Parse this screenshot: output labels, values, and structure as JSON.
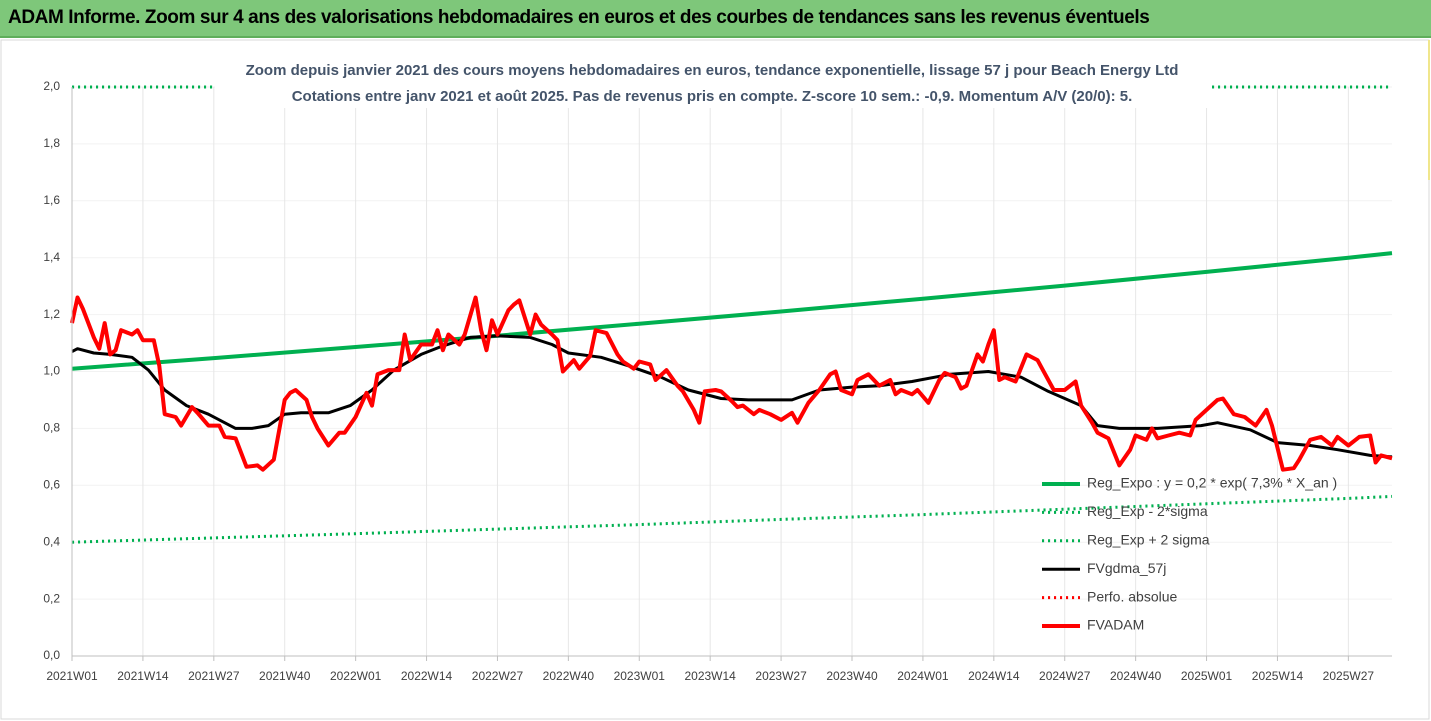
{
  "header": {
    "title": "ADAM Informe. Zoom sur 4 ans des valorisations hebdomadaires en euros et des courbes de tendances sans les revenus éventuels"
  },
  "chart_data": {
    "type": "line",
    "title": "Zoom depuis janvier 2021 des cours moyens hebdomadaires en euros, tendance exponentielle, lissage 57 j pour Beach Energy Ltd",
    "subtitle": "Cotations entre janv 2021 et août 2025.  Pas de revenus pris en compte. Z-score 10 sem.: -0,9. Momentum A/V (20/0): 5.",
    "xlim": [
      0,
      242
    ],
    "xticks": [
      {
        "value": 0,
        "label": "2021W01"
      },
      {
        "value": 13,
        "label": "2021W14"
      },
      {
        "value": 26,
        "label": "2021W27"
      },
      {
        "value": 39,
        "label": "2021W40"
      },
      {
        "value": 52,
        "label": "2022W01"
      },
      {
        "value": 65,
        "label": "2022W14"
      },
      {
        "value": 78,
        "label": "2022W27"
      },
      {
        "value": 91,
        "label": "2022W40"
      },
      {
        "value": 104,
        "label": "2023W01"
      },
      {
        "value": 117,
        "label": "2023W14"
      },
      {
        "value": 130,
        "label": "2023W27"
      },
      {
        "value": 143,
        "label": "2023W40"
      },
      {
        "value": 156,
        "label": "2024W01"
      },
      {
        "value": 169,
        "label": "2024W14"
      },
      {
        "value": 182,
        "label": "2024W27"
      },
      {
        "value": 195,
        "label": "2024W40"
      },
      {
        "value": 208,
        "label": "2025W01"
      },
      {
        "value": 221,
        "label": "2025W14"
      },
      {
        "value": 234,
        "label": "2025W27"
      }
    ],
    "ylim": [
      0,
      2
    ],
    "yticks": [
      {
        "value": 0,
        "label": "0,0"
      },
      {
        "value": 0.2,
        "label": "0,2"
      },
      {
        "value": 0.4,
        "label": "0,4"
      },
      {
        "value": 0.6,
        "label": "0,6"
      },
      {
        "value": 0.8,
        "label": "0,8"
      },
      {
        "value": 1.0,
        "label": "1,0"
      },
      {
        "value": 1.2,
        "label": "1,2"
      },
      {
        "value": 1.4,
        "label": "1,4"
      },
      {
        "value": 1.6,
        "label": "1,6"
      },
      {
        "value": 1.8,
        "label": "1,8"
      },
      {
        "value": 2.0,
        "label": "2,0"
      }
    ],
    "grid": true,
    "legend": "lower right",
    "series": [
      {
        "name": "Reg_Expo : y = 0,2 * exp( 7,3% *  X_an )",
        "color": "#00b050",
        "style": "solid",
        "line_width": 4,
        "x": [
          0,
          26,
          52,
          78,
          104,
          130,
          156,
          182,
          208,
          234,
          242
        ],
        "values": [
          1.01,
          1.047,
          1.086,
          1.126,
          1.168,
          1.211,
          1.256,
          1.302,
          1.35,
          1.4,
          1.416
        ]
      },
      {
        "name": "Reg_Exp - 2*sigma",
        "color": "#00b050",
        "style": "dotted",
        "line_width": 3,
        "x": [
          0,
          26,
          52,
          78,
          104,
          130,
          156,
          182,
          208,
          234,
          242
        ],
        "values": [
          0.4,
          0.415,
          0.43,
          0.446,
          0.462,
          0.48,
          0.497,
          0.516,
          0.535,
          0.554,
          0.561
        ]
      },
      {
        "name": "Reg_Exp + 2 sigma",
        "color": "#00b050",
        "style": "dotted",
        "line_width": 3,
        "x": [
          0,
          242
        ],
        "values": [
          2.0,
          2.0
        ]
      },
      {
        "name": "FVgdma_57j",
        "color": "#000000",
        "style": "solid",
        "line_width": 3,
        "x": [
          0,
          1,
          4,
          7,
          11,
          14,
          17,
          21,
          25,
          30,
          33,
          36,
          39,
          42,
          47,
          51,
          55,
          59,
          64,
          68,
          73,
          78,
          84,
          88,
          91,
          97,
          102,
          108,
          113,
          119,
          124,
          132,
          137,
          143,
          148,
          154,
          161,
          168,
          174,
          179,
          185,
          188,
          192,
          199,
          207,
          210,
          216,
          221,
          227,
          232,
          238,
          242
        ],
        "values": [
          1.07,
          1.08,
          1.065,
          1.06,
          1.05,
          1.005,
          0.935,
          0.88,
          0.85,
          0.8,
          0.8,
          0.81,
          0.85,
          0.855,
          0.855,
          0.88,
          0.935,
          1.005,
          1.06,
          1.09,
          1.12,
          1.125,
          1.12,
          1.095,
          1.065,
          1.05,
          1.02,
          0.98,
          0.935,
          0.905,
          0.9,
          0.9,
          0.935,
          0.945,
          0.95,
          0.965,
          0.99,
          1.0,
          0.98,
          0.93,
          0.88,
          0.81,
          0.8,
          0.8,
          0.81,
          0.82,
          0.795,
          0.75,
          0.74,
          0.725,
          0.705,
          0.7
        ]
      },
      {
        "name": "Perfo. absolue",
        "color": "#ff0000",
        "style": "dotted",
        "line_width": 3,
        "x": [],
        "values": []
      },
      {
        "name": "FVADAM",
        "color": "#ff0000",
        "style": "solid",
        "line_width": 4,
        "x": [
          0,
          1,
          2,
          4,
          5,
          6,
          7,
          8,
          9,
          11,
          12,
          13,
          15,
          16,
          17,
          19,
          20,
          22,
          23,
          25,
          27,
          28,
          30,
          32,
          34,
          35,
          37,
          39,
          40,
          41,
          43,
          44,
          45,
          47,
          49,
          50,
          52,
          54,
          55,
          56,
          58,
          60,
          61,
          62,
          64,
          66,
          67,
          68,
          69,
          71,
          72,
          74,
          75,
          76,
          77,
          78,
          80,
          81,
          82,
          84,
          85,
          86,
          88,
          89,
          90,
          92,
          93,
          95,
          96,
          98,
          100,
          101,
          103,
          104,
          106,
          107,
          109,
          111,
          112,
          114,
          115,
          116,
          118,
          119,
          121,
          122,
          123,
          125,
          126,
          128,
          130,
          132,
          133,
          135,
          137,
          139,
          140,
          141,
          143,
          144,
          146,
          148,
          150,
          151,
          152,
          154,
          155,
          157,
          159,
          160,
          162,
          163,
          164,
          166,
          167,
          168,
          169,
          170,
          171,
          173,
          175,
          177,
          178,
          180,
          182,
          184,
          185,
          187,
          188,
          190,
          192,
          194,
          195,
          197,
          198,
          199,
          201,
          203,
          205,
          206,
          208,
          210,
          211,
          213,
          215,
          217,
          219,
          220,
          222,
          224,
          225,
          227,
          229,
          231,
          232,
          234,
          236,
          238,
          239,
          240,
          242
        ],
        "values": [
          1.17,
          1.26,
          1.22,
          1.12,
          1.08,
          1.17,
          1.06,
          1.075,
          1.145,
          1.13,
          1.145,
          1.11,
          1.11,
          1.02,
          0.85,
          0.84,
          0.81,
          0.875,
          0.855,
          0.81,
          0.81,
          0.77,
          0.765,
          0.665,
          0.67,
          0.655,
          0.69,
          0.9,
          0.925,
          0.935,
          0.9,
          0.84,
          0.8,
          0.74,
          0.785,
          0.785,
          0.84,
          0.925,
          0.88,
          0.99,
          1.005,
          1.005,
          1.13,
          1.04,
          1.095,
          1.095,
          1.145,
          1.075,
          1.13,
          1.095,
          1.13,
          1.26,
          1.145,
          1.075,
          1.18,
          1.13,
          1.215,
          1.235,
          1.25,
          1.13,
          1.2,
          1.165,
          1.13,
          1.11,
          1.0,
          1.04,
          1.01,
          1.055,
          1.145,
          1.135,
          1.06,
          1.035,
          1.01,
          1.035,
          1.025,
          0.97,
          1.005,
          0.95,
          0.93,
          0.865,
          0.82,
          0.93,
          0.935,
          0.93,
          0.895,
          0.875,
          0.88,
          0.85,
          0.865,
          0.85,
          0.83,
          0.855,
          0.82,
          0.89,
          0.935,
          0.99,
          1.0,
          0.935,
          0.92,
          0.97,
          0.99,
          0.95,
          0.97,
          0.92,
          0.935,
          0.92,
          0.935,
          0.89,
          0.97,
          0.995,
          0.98,
          0.94,
          0.95,
          1.06,
          1.035,
          1.095,
          1.145,
          0.97,
          0.98,
          0.965,
          1.06,
          1.04,
          1.005,
          0.935,
          0.935,
          0.965,
          0.88,
          0.82,
          0.785,
          0.765,
          0.67,
          0.725,
          0.775,
          0.76,
          0.8,
          0.765,
          0.775,
          0.785,
          0.775,
          0.83,
          0.865,
          0.9,
          0.905,
          0.85,
          0.84,
          0.81,
          0.865,
          0.81,
          0.655,
          0.66,
          0.69,
          0.76,
          0.77,
          0.74,
          0.77,
          0.74,
          0.77,
          0.775,
          0.68,
          0.705,
          0.695
        ]
      }
    ]
  }
}
